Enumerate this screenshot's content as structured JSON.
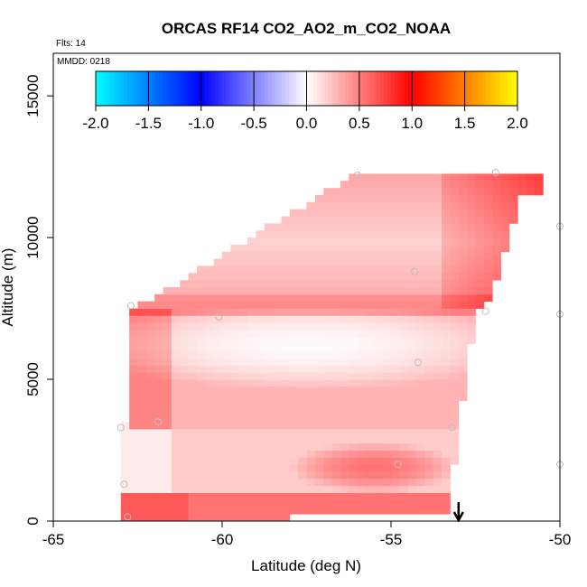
{
  "chart_data": {
    "type": "heatmap",
    "title": "ORCAS RF14 CO2_AO2_m_CO2_NOAA",
    "flights_note": "Flts: 14",
    "date_note": "MMDD: 0218",
    "xlabel": "Latitude (deg N)",
    "ylabel": "Altitude (m)",
    "xlim": [
      -65,
      -50
    ],
    "ylim": [
      0,
      16500
    ],
    "x_ticks": [
      -65,
      -60,
      -55,
      -50
    ],
    "y_ticks": [
      0,
      5000,
      10000,
      15000
    ],
    "colorbar": {
      "range": [
        -2.0,
        2.0
      ],
      "ticks": [
        -2.0,
        -1.5,
        -1.0,
        -0.5,
        0.0,
        0.5,
        1.0,
        1.5,
        2.0
      ],
      "colors": [
        "#00ffff",
        "#0000ff",
        "#ffffff",
        "#ff0000",
        "#ffff00"
      ]
    },
    "cell_size": {
      "lat": 0.25,
      "alt": 250
    },
    "layers": [
      {
        "name": "upper",
        "lat_min": -62.7,
        "lat_max": -50.6,
        "alt_min": 7400,
        "alt_max": 12300,
        "base_value": 0.35
      },
      {
        "name": "middle",
        "lat_min": -62.7,
        "lat_max": -52.5,
        "alt_min": 3200,
        "alt_max": 7600,
        "base_value": 0.3
      },
      {
        "name": "lower",
        "lat_min": -63.0,
        "lat_max": -53.3,
        "alt_min": 0,
        "alt_max": 3500,
        "base_value": 0.25
      }
    ],
    "sample_points": [
      {
        "lat": -56.0,
        "alt": 12200
      },
      {
        "lat": -51.9,
        "alt": 12300
      },
      {
        "lat": -54.3,
        "alt": 8800
      },
      {
        "lat": -62.7,
        "alt": 7600
      },
      {
        "lat": -60.1,
        "alt": 7200
      },
      {
        "lat": -52.2,
        "alt": 7400
      },
      {
        "lat": -54.2,
        "alt": 5600
      },
      {
        "lat": -63.0,
        "alt": 3300
      },
      {
        "lat": -61.9,
        "alt": 3500
      },
      {
        "lat": -53.2,
        "alt": 3300
      },
      {
        "lat": -54.8,
        "alt": 2000
      },
      {
        "lat": -62.9,
        "alt": 1300
      },
      {
        "lat": -62.8,
        "alt": 150
      },
      {
        "lat": -50.0,
        "alt": 10400
      },
      {
        "lat": -50.0,
        "alt": 7300
      },
      {
        "lat": -50.0,
        "alt": 2000
      }
    ],
    "arrow_marker": {
      "lat": -53.0,
      "direction": "down"
    }
  }
}
